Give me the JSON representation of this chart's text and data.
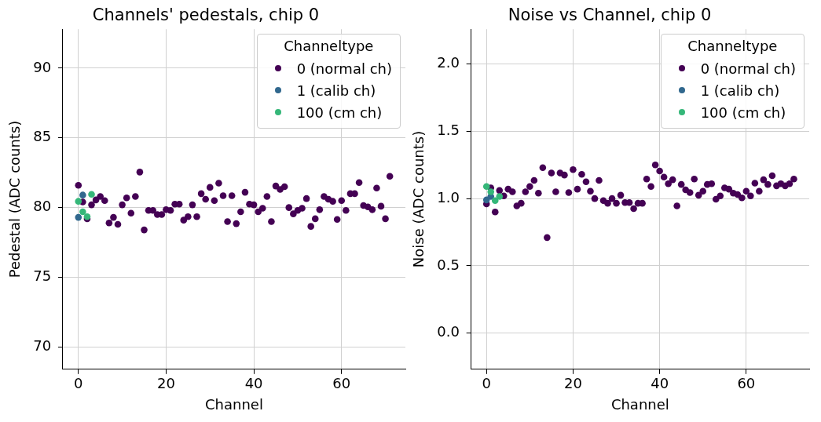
{
  "chart_data": [
    {
      "type": "scatter",
      "title": "Channels' pedestals, chip 0",
      "xlabel": "Channel",
      "ylabel": "Pedestal (ADC counts)",
      "legend_title": "Channeltype",
      "legend": "top right",
      "grid": true,
      "marker": "circle",
      "xlim": [
        -3.55,
        74.55
      ],
      "xticks": [
        0,
        20,
        40,
        60
      ],
      "ylim": [
        68.4,
        92.8
      ],
      "yticks": [
        70,
        75,
        80,
        85,
        90
      ],
      "series": [
        {
          "name": "0 (normal ch)",
          "color": "#440154",
          "x": [
            0,
            1,
            2,
            3,
            4,
            5,
            6,
            7,
            8,
            9,
            10,
            11,
            12,
            13,
            14,
            15,
            16,
            17,
            18,
            19,
            20,
            21,
            22,
            23,
            24,
            25,
            26,
            27,
            28,
            29,
            30,
            31,
            32,
            33,
            34,
            35,
            36,
            37,
            38,
            39,
            40,
            41,
            42,
            43,
            44,
            45,
            46,
            47,
            48,
            49,
            50,
            51,
            52,
            53,
            54,
            55,
            56,
            57,
            58,
            59,
            60,
            61,
            62,
            63,
            64,
            65,
            66,
            67,
            68,
            69,
            70,
            71
          ],
          "values": [
            81.6,
            80.4,
            79.2,
            80.2,
            80.55,
            80.8,
            80.5,
            78.9,
            79.3,
            78.8,
            80.2,
            80.7,
            79.6,
            80.8,
            82.55,
            78.4,
            79.8,
            79.8,
            79.5,
            79.5,
            79.85,
            79.8,
            80.25,
            80.25,
            79.1,
            79.35,
            80.2,
            79.35,
            81.0,
            80.6,
            81.45,
            80.5,
            81.75,
            80.85,
            79.0,
            80.85,
            78.85,
            79.7,
            81.1,
            80.25,
            80.2,
            79.7,
            79.95,
            80.8,
            79.0,
            81.55,
            81.3,
            81.5,
            80.0,
            79.55,
            79.8,
            79.95,
            80.65,
            78.65,
            79.2,
            79.85,
            80.8,
            80.6,
            80.45,
            79.15,
            80.5,
            79.8,
            81.0,
            81.0,
            81.8,
            80.15,
            80.05,
            79.85,
            81.4,
            80.1,
            79.2,
            82.25
          ]
        },
        {
          "name": "1 (calib ch)",
          "color": "#31688e",
          "x": [
            0,
            1
          ],
          "values": [
            79.3,
            80.9
          ]
        },
        {
          "name": "100 (cm ch)",
          "color": "#35b779",
          "x": [
            0,
            1,
            2,
            3
          ],
          "values": [
            80.45,
            79.7,
            79.35,
            80.95
          ]
        }
      ]
    },
    {
      "type": "scatter",
      "title": "Noise vs Channel, chip 0",
      "xlabel": "Channel",
      "ylabel": "Noise (ADC counts)",
      "legend_title": "Channeltype",
      "legend": "top right",
      "grid": true,
      "marker": "circle",
      "xlim": [
        -3.55,
        74.55
      ],
      "xticks": [
        0,
        20,
        40,
        60
      ],
      "ylim": [
        -0.27,
        2.26
      ],
      "yticks": [
        {
          "value": 0,
          "label": "0.0"
        },
        {
          "value": 0.5,
          "label": "0.5"
        },
        {
          "value": 1,
          "label": "1.0"
        },
        {
          "value": 1.5,
          "label": "1.5"
        },
        {
          "value": 2,
          "label": "2.0"
        }
      ],
      "series": [
        {
          "name": "0 (normal ch)",
          "color": "#440154",
          "x": [
            0,
            1,
            2,
            3,
            4,
            5,
            6,
            7,
            8,
            9,
            10,
            11,
            12,
            13,
            14,
            15,
            16,
            17,
            18,
            19,
            20,
            21,
            22,
            23,
            24,
            25,
            26,
            27,
            28,
            29,
            30,
            31,
            32,
            33,
            34,
            35,
            36,
            37,
            38,
            39,
            40,
            41,
            42,
            43,
            44,
            45,
            46,
            47,
            48,
            49,
            50,
            51,
            52,
            53,
            54,
            55,
            56,
            57,
            58,
            59,
            60,
            61,
            62,
            63,
            64,
            65,
            66,
            67,
            68,
            69,
            70,
            71
          ],
          "values": [
            0.96,
            1.08,
            0.9,
            1.06,
            1.02,
            1.07,
            1.05,
            0.945,
            0.965,
            1.05,
            1.09,
            1.135,
            1.04,
            1.23,
            0.71,
            1.19,
            1.05,
            1.19,
            1.175,
            1.045,
            1.215,
            1.07,
            1.18,
            1.125,
            1.055,
            1.0,
            1.135,
            0.985,
            0.965,
            1.0,
            0.965,
            1.025,
            0.97,
            0.97,
            0.925,
            0.965,
            0.965,
            1.145,
            1.09,
            1.25,
            1.205,
            1.16,
            1.11,
            1.14,
            0.945,
            1.105,
            1.065,
            1.045,
            1.145,
            1.025,
            1.055,
            1.105,
            1.11,
            0.995,
            1.02,
            1.08,
            1.07,
            1.04,
            1.03,
            1.005,
            1.055,
            1.02,
            1.115,
            1.055,
            1.14,
            1.105,
            1.17,
            1.095,
            1.11,
            1.095,
            1.11,
            1.145
          ]
        },
        {
          "name": "1 (calib ch)",
          "color": "#31688e",
          "x": [
            0,
            1
          ],
          "values": [
            0.99,
            1.015
          ]
        },
        {
          "name": "100 (cm ch)",
          "color": "#35b779",
          "x": [
            0,
            1,
            2,
            3
          ],
          "values": [
            1.09,
            1.05,
            0.985,
            1.015
          ]
        }
      ]
    }
  ]
}
